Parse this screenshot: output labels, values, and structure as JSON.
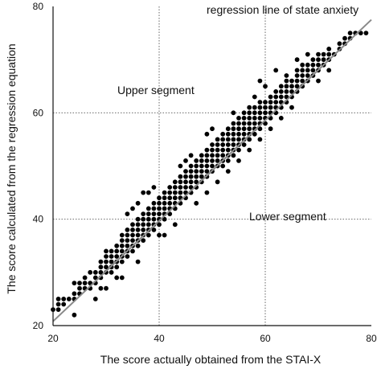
{
  "chart_data": {
    "type": "scatter",
    "title": "",
    "xlabel": "The score actually obtained from the STAI-X",
    "ylabel": "The score calculated from the regression equation",
    "xlim": [
      20,
      80
    ],
    "ylim": [
      20,
      80
    ],
    "xticks": [
      "20",
      "40",
      "60",
      "80"
    ],
    "yticks": [
      "20",
      "40",
      "60",
      "80"
    ],
    "grid": "dotted reference lines at x=40, x=60, y=40, y=60",
    "annotations": {
      "line_label": "regression line of state anxiety",
      "upper_segment": "Upper segment",
      "lower_segment": "Lower segment"
    },
    "regression_line": {
      "x": [
        20,
        80
      ],
      "y": [
        20.8,
        77.5
      ]
    },
    "series": [
      {
        "marker": "filled circle",
        "color": "#000000",
        "points": [
          [
            20,
            23
          ],
          [
            21,
            23
          ],
          [
            21,
            24
          ],
          [
            21,
            25
          ],
          [
            22,
            24
          ],
          [
            22,
            25
          ],
          [
            23,
            25
          ],
          [
            24,
            25
          ],
          [
            24,
            26
          ],
          [
            24,
            28
          ],
          [
            25,
            26
          ],
          [
            25,
            27
          ],
          [
            25,
            28
          ],
          [
            26,
            27
          ],
          [
            26,
            28
          ],
          [
            27,
            27
          ],
          [
            27,
            28
          ],
          [
            27,
            30
          ],
          [
            28,
            28
          ],
          [
            28,
            29
          ],
          [
            28,
            30
          ],
          [
            29,
            29
          ],
          [
            29,
            30
          ],
          [
            29,
            31
          ],
          [
            29,
            32
          ],
          [
            30,
            30
          ],
          [
            30,
            31
          ],
          [
            30,
            32
          ],
          [
            30,
            33
          ],
          [
            30,
            34
          ],
          [
            31,
            30
          ],
          [
            31,
            31
          ],
          [
            31,
            32
          ],
          [
            31,
            33
          ],
          [
            31,
            34
          ],
          [
            32,
            31
          ],
          [
            32,
            32
          ],
          [
            32,
            33
          ],
          [
            32,
            34
          ],
          [
            32,
            35
          ],
          [
            33,
            32
          ],
          [
            33,
            33
          ],
          [
            33,
            34
          ],
          [
            33,
            35
          ],
          [
            33,
            36
          ],
          [
            33,
            37
          ],
          [
            34,
            33
          ],
          [
            34,
            34
          ],
          [
            34,
            35
          ],
          [
            34,
            36
          ],
          [
            34,
            37
          ],
          [
            34,
            38
          ],
          [
            35,
            34
          ],
          [
            35,
            35
          ],
          [
            35,
            36
          ],
          [
            35,
            37
          ],
          [
            35,
            38
          ],
          [
            35,
            39
          ],
          [
            36,
            35
          ],
          [
            36,
            36
          ],
          [
            36,
            37
          ],
          [
            36,
            38
          ],
          [
            36,
            39
          ],
          [
            36,
            40
          ],
          [
            37,
            36
          ],
          [
            37,
            37
          ],
          [
            37,
            38
          ],
          [
            37,
            39
          ],
          [
            37,
            40
          ],
          [
            37,
            41
          ],
          [
            38,
            37
          ],
          [
            38,
            38
          ],
          [
            38,
            39
          ],
          [
            38,
            40
          ],
          [
            38,
            41
          ],
          [
            38,
            42
          ],
          [
            39,
            38
          ],
          [
            39,
            39
          ],
          [
            39,
            40
          ],
          [
            39,
            41
          ],
          [
            39,
            42
          ],
          [
            39,
            43
          ],
          [
            40,
            39
          ],
          [
            40,
            40
          ],
          [
            40,
            41
          ],
          [
            40,
            42
          ],
          [
            40,
            43
          ],
          [
            40,
            44
          ],
          [
            41,
            40
          ],
          [
            41,
            41
          ],
          [
            41,
            42
          ],
          [
            41,
            43
          ],
          [
            41,
            44
          ],
          [
            41,
            45
          ],
          [
            42,
            41
          ],
          [
            42,
            42
          ],
          [
            42,
            43
          ],
          [
            42,
            44
          ],
          [
            42,
            45
          ],
          [
            42,
            46
          ],
          [
            43,
            42
          ],
          [
            43,
            43
          ],
          [
            43,
            44
          ],
          [
            43,
            45
          ],
          [
            43,
            46
          ],
          [
            43,
            47
          ],
          [
            44,
            43
          ],
          [
            44,
            44
          ],
          [
            44,
            45
          ],
          [
            44,
            46
          ],
          [
            44,
            47
          ],
          [
            44,
            48
          ],
          [
            45,
            44
          ],
          [
            45,
            45
          ],
          [
            45,
            46
          ],
          [
            45,
            47
          ],
          [
            45,
            48
          ],
          [
            45,
            49
          ],
          [
            46,
            45
          ],
          [
            46,
            46
          ],
          [
            46,
            47
          ],
          [
            46,
            48
          ],
          [
            46,
            49
          ],
          [
            46,
            50
          ],
          [
            47,
            46
          ],
          [
            47,
            47
          ],
          [
            47,
            48
          ],
          [
            47,
            49
          ],
          [
            47,
            50
          ],
          [
            47,
            51
          ],
          [
            48,
            47
          ],
          [
            48,
            48
          ],
          [
            48,
            49
          ],
          [
            48,
            50
          ],
          [
            48,
            51
          ],
          [
            48,
            52
          ],
          [
            49,
            48
          ],
          [
            49,
            49
          ],
          [
            49,
            50
          ],
          [
            49,
            51
          ],
          [
            49,
            52
          ],
          [
            49,
            53
          ],
          [
            50,
            49
          ],
          [
            50,
            50
          ],
          [
            50,
            51
          ],
          [
            50,
            52
          ],
          [
            50,
            53
          ],
          [
            50,
            54
          ],
          [
            51,
            50
          ],
          [
            51,
            51
          ],
          [
            51,
            52
          ],
          [
            51,
            53
          ],
          [
            51,
            54
          ],
          [
            51,
            55
          ],
          [
            52,
            50
          ],
          [
            52,
            51
          ],
          [
            52,
            52
          ],
          [
            52,
            53
          ],
          [
            52,
            54
          ],
          [
            52,
            55
          ],
          [
            52,
            56
          ],
          [
            53,
            51
          ],
          [
            53,
            52
          ],
          [
            53,
            53
          ],
          [
            53,
            54
          ],
          [
            53,
            55
          ],
          [
            53,
            56
          ],
          [
            53,
            57
          ],
          [
            54,
            52
          ],
          [
            54,
            53
          ],
          [
            54,
            54
          ],
          [
            54,
            55
          ],
          [
            54,
            56
          ],
          [
            54,
            57
          ],
          [
            54,
            58
          ],
          [
            55,
            53
          ],
          [
            55,
            54
          ],
          [
            55,
            55
          ],
          [
            55,
            56
          ],
          [
            55,
            57
          ],
          [
            55,
            58
          ],
          [
            55,
            59
          ],
          [
            56,
            54
          ],
          [
            56,
            55
          ],
          [
            56,
            56
          ],
          [
            56,
            57
          ],
          [
            56,
            58
          ],
          [
            56,
            59
          ],
          [
            56,
            60
          ],
          [
            57,
            55
          ],
          [
            57,
            56
          ],
          [
            57,
            57
          ],
          [
            57,
            58
          ],
          [
            57,
            59
          ],
          [
            57,
            60
          ],
          [
            57,
            61
          ],
          [
            58,
            56
          ],
          [
            58,
            57
          ],
          [
            58,
            58
          ],
          [
            58,
            59
          ],
          [
            58,
            60
          ],
          [
            58,
            61
          ],
          [
            59,
            57
          ],
          [
            59,
            58
          ],
          [
            59,
            59
          ],
          [
            59,
            60
          ],
          [
            59,
            61
          ],
          [
            59,
            62
          ],
          [
            60,
            58
          ],
          [
            60,
            59
          ],
          [
            60,
            60
          ],
          [
            60,
            61
          ],
          [
            60,
            62
          ],
          [
            61,
            59
          ],
          [
            61,
            60
          ],
          [
            61,
            61
          ],
          [
            61,
            62
          ],
          [
            61,
            63
          ],
          [
            62,
            60
          ],
          [
            62,
            61
          ],
          [
            62,
            62
          ],
          [
            62,
            63
          ],
          [
            62,
            64
          ],
          [
            63,
            61
          ],
          [
            63,
            62
          ],
          [
            63,
            63
          ],
          [
            63,
            64
          ],
          [
            63,
            65
          ],
          [
            64,
            62
          ],
          [
            64,
            63
          ],
          [
            64,
            64
          ],
          [
            64,
            65
          ],
          [
            64,
            66
          ],
          [
            65,
            63
          ],
          [
            65,
            64
          ],
          [
            65,
            65
          ],
          [
            65,
            66
          ],
          [
            66,
            64
          ],
          [
            66,
            65
          ],
          [
            66,
            66
          ],
          [
            66,
            67
          ],
          [
            66,
            68
          ],
          [
            67,
            65
          ],
          [
            67,
            66
          ],
          [
            67,
            67
          ],
          [
            67,
            68
          ],
          [
            67,
            69
          ],
          [
            68,
            66
          ],
          [
            68,
            67
          ],
          [
            68,
            68
          ],
          [
            68,
            69
          ],
          [
            69,
            67
          ],
          [
            69,
            68
          ],
          [
            69,
            69
          ],
          [
            69,
            70
          ],
          [
            70,
            68
          ],
          [
            70,
            69
          ],
          [
            70,
            70
          ],
          [
            70,
            71
          ],
          [
            71,
            69
          ],
          [
            71,
            70
          ],
          [
            71,
            71
          ],
          [
            72,
            70
          ],
          [
            72,
            71
          ],
          [
            72,
            72
          ],
          [
            73,
            71
          ],
          [
            74,
            72
          ],
          [
            74,
            73
          ],
          [
            75,
            73
          ],
          [
            75,
            74
          ],
          [
            76,
            74
          ],
          [
            76,
            75
          ],
          [
            77,
            75
          ],
          [
            78,
            75
          ],
          [
            79,
            75
          ],
          [
            34,
            41
          ],
          [
            35,
            42
          ],
          [
            36,
            43
          ],
          [
            38,
            45
          ],
          [
            28,
            25
          ],
          [
            30,
            27
          ],
          [
            32,
            29
          ],
          [
            43,
            39
          ],
          [
            41,
            37
          ],
          [
            47,
            43
          ],
          [
            49,
            45
          ],
          [
            51,
            47
          ],
          [
            53,
            49
          ],
          [
            55,
            51
          ],
          [
            57,
            53
          ],
          [
            59,
            55
          ],
          [
            61,
            57
          ],
          [
            63,
            59
          ],
          [
            65,
            61
          ],
          [
            33,
            29
          ],
          [
            37,
            45
          ],
          [
            39,
            46
          ],
          [
            45,
            51
          ],
          [
            49,
            56
          ],
          [
            59,
            66
          ],
          [
            62,
            68
          ],
          [
            66,
            70
          ],
          [
            36,
            32
          ],
          [
            24,
            22
          ],
          [
            26,
            29
          ],
          [
            29,
            27
          ],
          [
            40,
            37
          ],
          [
            44,
            50
          ],
          [
            46,
            52
          ],
          [
            50,
            57
          ],
          [
            54,
            60
          ],
          [
            58,
            63
          ],
          [
            60,
            65
          ],
          [
            64,
            67
          ],
          [
            68,
            71
          ],
          [
            70,
            66
          ],
          [
            72,
            68
          ]
        ]
      }
    ]
  }
}
